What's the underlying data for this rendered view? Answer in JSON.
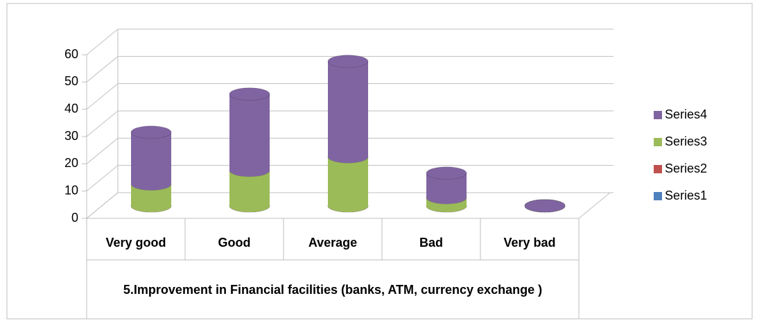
{
  "chart_data": {
    "type": "bar",
    "stacked": true,
    "three_d": true,
    "categories": [
      "Very good",
      "Good",
      "Average",
      "Bad",
      "Very bad"
    ],
    "x_group_label": "5.Improvement in Financial facilities (banks, ATM, currency exchange )",
    "series": [
      {
        "name": "Series1",
        "color": "#4f81bd",
        "values": [
          0,
          0,
          0,
          0,
          0
        ]
      },
      {
        "name": "Series2",
        "color": "#c0504d",
        "values": [
          0,
          0,
          0,
          0,
          0
        ]
      },
      {
        "name": "Series3",
        "color": "#9bbb59",
        "values": [
          8,
          13,
          18,
          3,
          0
        ]
      },
      {
        "name": "Series4",
        "color": "#8064a2",
        "values": [
          19,
          28,
          35,
          9,
          0
        ]
      }
    ],
    "ylim": [
      0,
      60
    ],
    "yticks": [
      0,
      10,
      20,
      30,
      40,
      50,
      60
    ],
    "grid": true,
    "legend": "right"
  }
}
